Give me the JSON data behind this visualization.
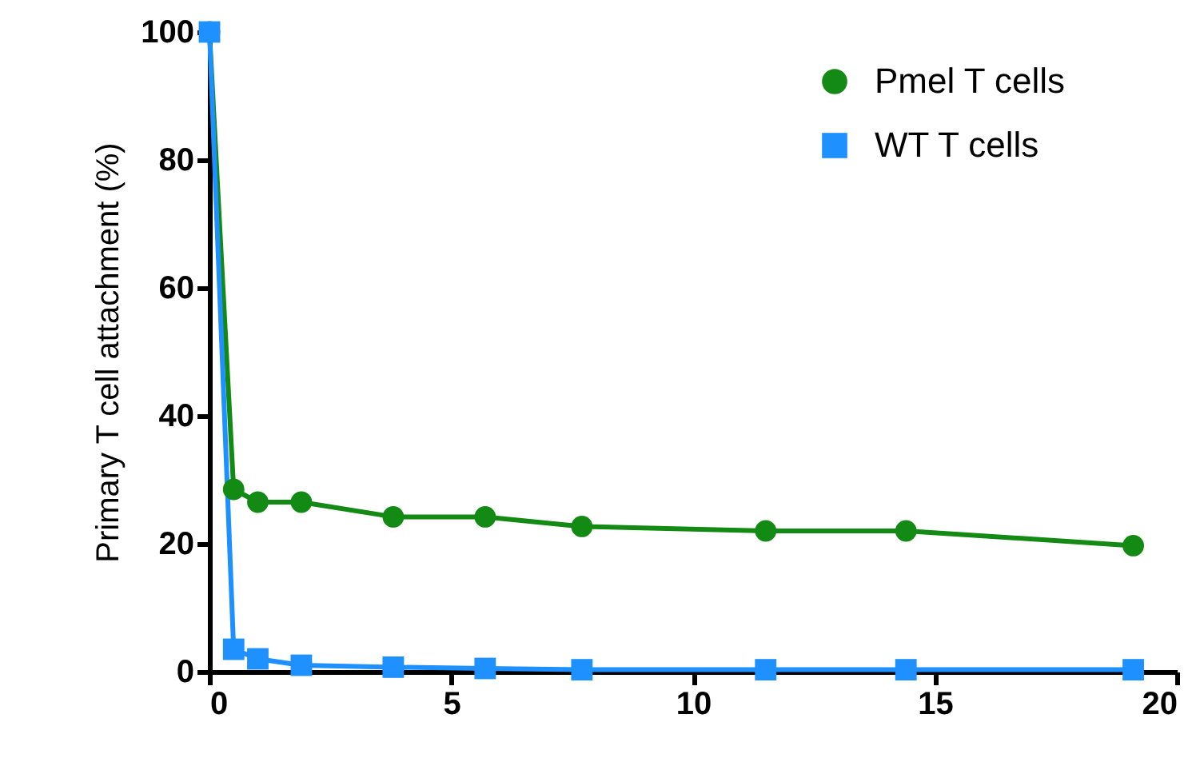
{
  "chart_data": {
    "type": "line",
    "ylabel": "Primary T cell attachment (%)",
    "xlim": [
      0,
      20
    ],
    "xticks": [
      0,
      5,
      10,
      15,
      20
    ],
    "ylim": [
      0,
      100
    ],
    "yticks": [
      0,
      20,
      40,
      60,
      80,
      100
    ],
    "grid": false,
    "legend": "top right",
    "line_style": "solid",
    "x": [
      0,
      0.5,
      1,
      1.9,
      3.8,
      5.7,
      7.7,
      11.5,
      14.4,
      19.1
    ],
    "series": [
      {
        "name": "Pmel T cells",
        "color": "#138a13",
        "marker": "circle",
        "values": [
          100,
          28.5,
          26.5,
          26.5,
          24.2,
          24.2,
          22.7,
          22,
          22,
          19.7
        ]
      },
      {
        "name": "WT T cells",
        "color": "#1e90ff",
        "marker": "square",
        "values": [
          100,
          3.5,
          2,
          1,
          0.7,
          0.5,
          0.3,
          0.3,
          0.3,
          0.3
        ]
      }
    ]
  }
}
